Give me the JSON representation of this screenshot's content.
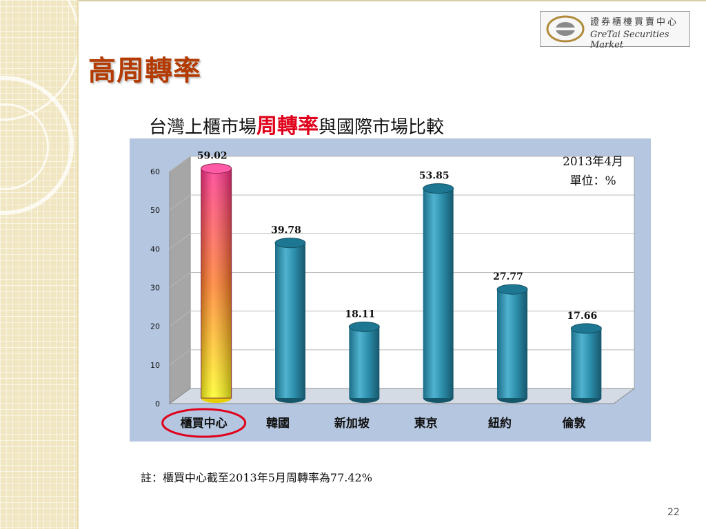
{
  "slide": {
    "title": "高周轉率",
    "page_number": "22",
    "note": "註：櫃買中心截至2013年5月周轉率為77.42%"
  },
  "logo": {
    "text_cn": "證券櫃檯買賣中心",
    "text_en": "GreTai Securities Market"
  },
  "subtitle": {
    "prefix": "台灣上櫃市場",
    "highlight": "周轉率",
    "suffix": "與國際市場比較"
  },
  "colors": {
    "title": "#b33a00",
    "highlight": "#e0001b",
    "bar": "#2b8ca9",
    "highlight_bar_top": "#ff2d8a",
    "highlight_bar_bottom": "#ffff1a",
    "chart_bg": "#b4c6e0",
    "circle": "#e0001b"
  },
  "chart_data": {
    "type": "bar",
    "title": "",
    "xlabel": "",
    "ylabel": "",
    "categories": [
      "櫃買中心",
      "韓國",
      "新加坡",
      "東京",
      "紐約",
      "倫敦"
    ],
    "values": [
      59.02,
      39.78,
      18.11,
      53.85,
      27.77,
      17.66
    ],
    "data_labels": [
      "59.02",
      "39.78",
      "18.11",
      "53.85",
      "27.77",
      "17.66"
    ],
    "ylim": [
      0,
      60
    ],
    "yticks": [
      0,
      10,
      20,
      30,
      40,
      50,
      60
    ],
    "grid": true,
    "highlight_category": "櫃買中心",
    "annotation_lines": [
      "2013年4月",
      "單位：%"
    ]
  }
}
